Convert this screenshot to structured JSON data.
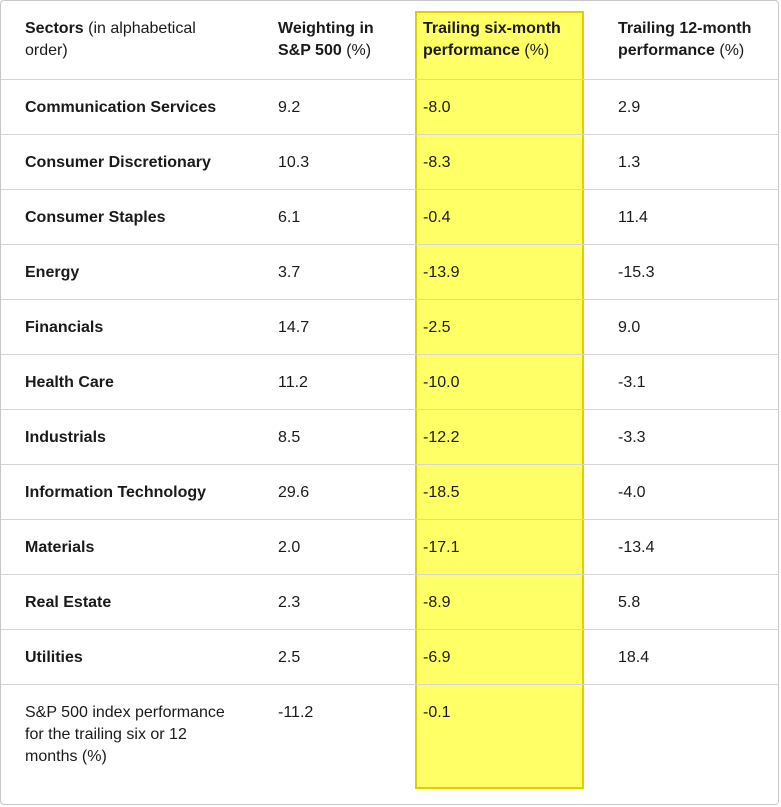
{
  "table": {
    "headers": [
      {
        "bold": "Sectors",
        "normal": " (in alphabetical order)"
      },
      {
        "bold": "Weighting in S&P 500",
        "normal": " (%)"
      },
      {
        "bold": "Trailing six-month performance",
        "normal": " (%)"
      },
      {
        "bold": "Trailing 12-month performance",
        "normal": " (%)"
      }
    ],
    "rows": [
      {
        "sector": "Communication Services",
        "weight": "9.2",
        "six_month": "-8.0",
        "twelve_month": "2.9"
      },
      {
        "sector": "Consumer Discretionary",
        "weight": "10.3",
        "six_month": "-8.3",
        "twelve_month": "1.3"
      },
      {
        "sector": "Consumer Staples",
        "weight": "6.1",
        "six_month": "-0.4",
        "twelve_month": "11.4"
      },
      {
        "sector": "Energy",
        "weight": "3.7",
        "six_month": "-13.9",
        "twelve_month": "-15.3"
      },
      {
        "sector": "Financials",
        "weight": "14.7",
        "six_month": "-2.5",
        "twelve_month": "9.0"
      },
      {
        "sector": "Health Care",
        "weight": "11.2",
        "six_month": "-10.0",
        "twelve_month": "-3.1"
      },
      {
        "sector": "Industrials",
        "weight": "8.5",
        "six_month": "-12.2",
        "twelve_month": "-3.3"
      },
      {
        "sector": "Information Technology",
        "weight": "29.6",
        "six_month": "-18.5",
        "twelve_month": "-4.0"
      },
      {
        "sector": "Materials",
        "weight": "2.0",
        "six_month": "-17.1",
        "twelve_month": "-13.4"
      },
      {
        "sector": "Real Estate",
        "weight": "2.3",
        "six_month": "-8.9",
        "twelve_month": "5.8"
      },
      {
        "sector": "Utilities",
        "weight": "2.5",
        "six_month": "-6.9",
        "twelve_month": "18.4"
      }
    ],
    "summary": {
      "label": "S&P 500 index performance for the trailing six or 12 months (%)",
      "weight": "-11.2",
      "six_month": "-0.1",
      "twelve_month": ""
    }
  },
  "colors": {
    "highlight_fill": "#ffff66",
    "highlight_border": "#e0d000",
    "row_divider": "#d4d4d4"
  }
}
